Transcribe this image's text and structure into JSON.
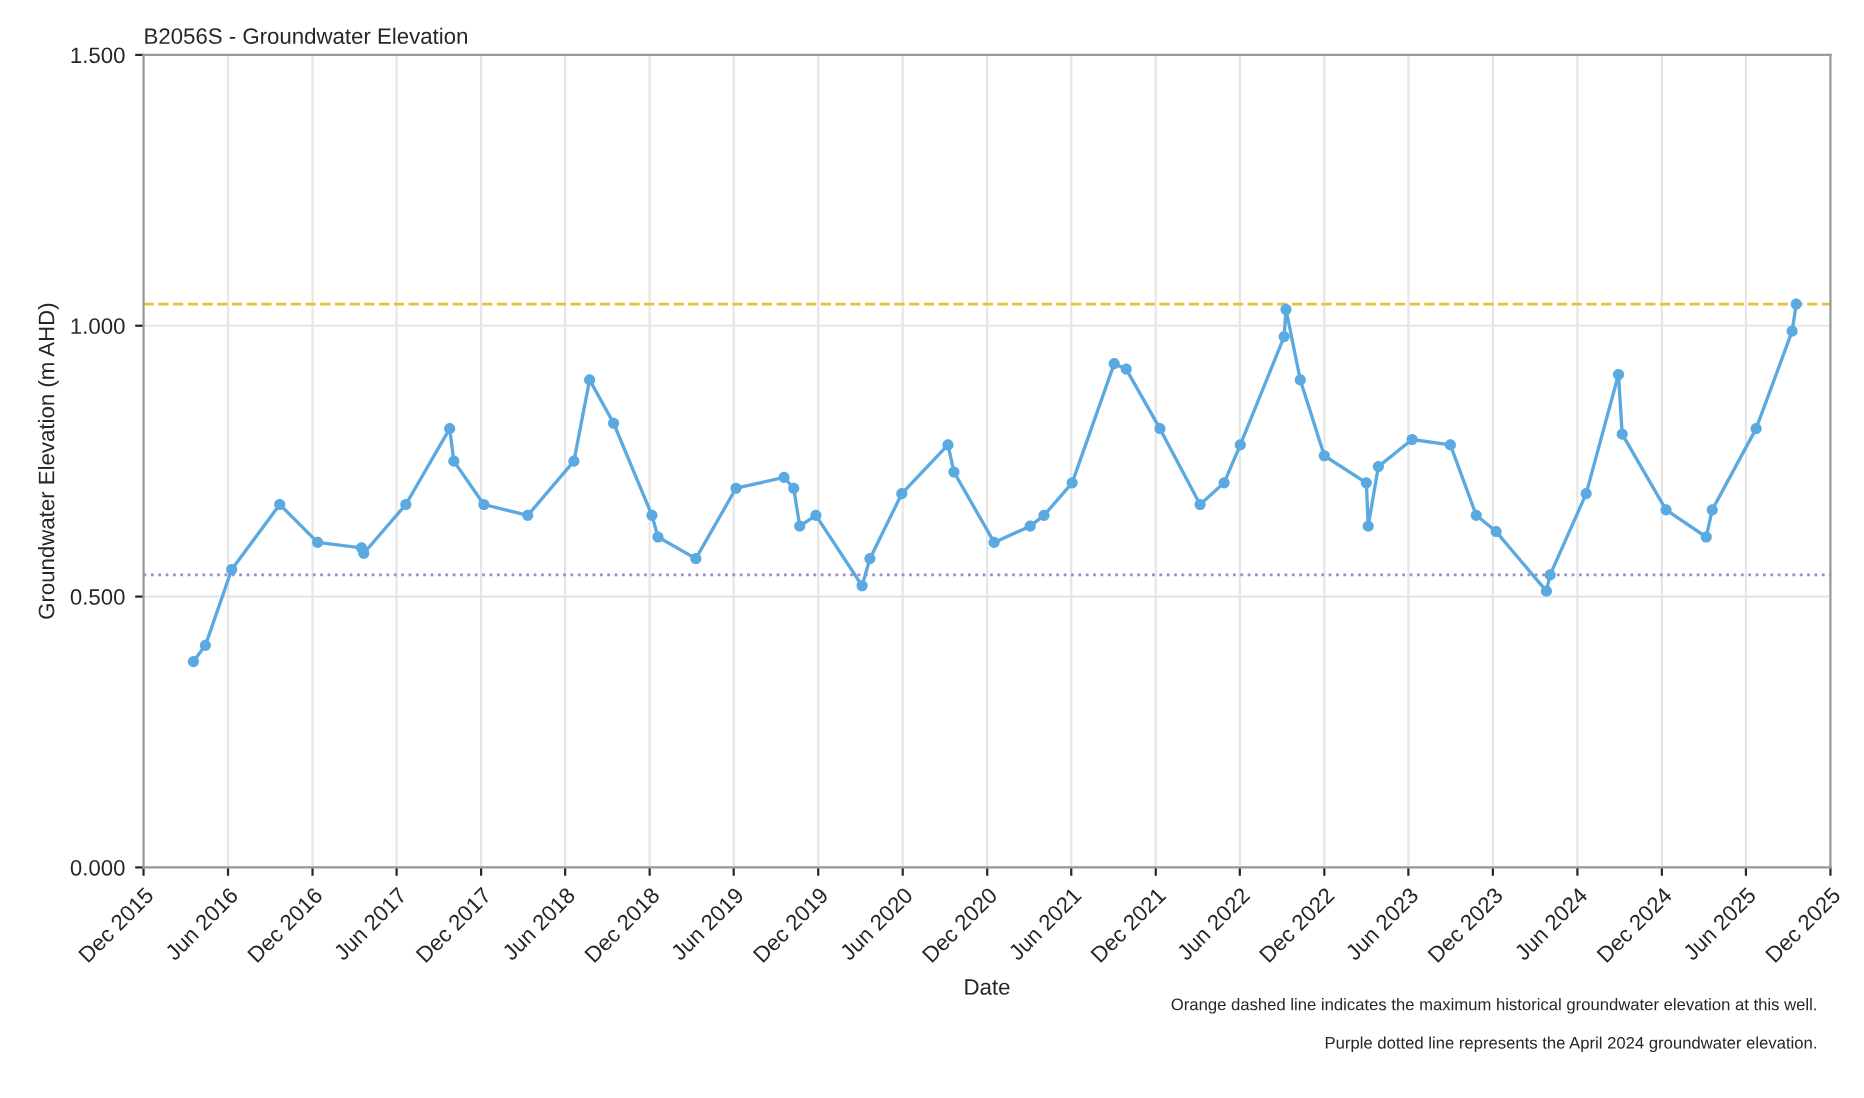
{
  "chart_data": {
    "type": "line",
    "title": "B2056S - Groundwater Elevation",
    "xlabel": "Date",
    "ylabel": "Groundwater Elevation (m AHD)",
    "x": [
      "2016-03-18",
      "2016-04-13",
      "2016-06-09",
      "2016-09-21",
      "2016-12-12",
      "2017-03-17",
      "2017-03-22",
      "2017-06-21",
      "2017-09-24",
      "2017-10-03",
      "2017-12-07",
      "2018-03-12",
      "2018-06-20",
      "2018-07-24",
      "2018-09-14",
      "2018-12-06",
      "2018-12-19",
      "2019-03-11",
      "2019-06-06",
      "2019-09-18",
      "2019-10-09",
      "2019-10-22",
      "2019-11-26",
      "2020-03-05",
      "2020-03-22",
      "2020-05-30",
      "2020-09-07",
      "2020-09-20",
      "2020-12-16",
      "2021-03-04",
      "2021-04-03",
      "2021-06-03",
      "2021-09-02",
      "2021-09-28",
      "2021-12-10",
      "2022-03-07",
      "2022-04-28",
      "2022-06-02",
      "2022-09-05",
      "2022-09-09",
      "2022-10-10",
      "2022-12-01",
      "2023-03-02",
      "2023-03-06",
      "2023-03-28",
      "2023-06-09",
      "2023-08-31",
      "2023-10-26",
      "2023-12-08",
      "2024-03-26",
      "2024-04-03",
      "2024-06-20",
      "2024-08-29",
      "2024-09-06",
      "2024-12-10",
      "2025-03-07",
      "2025-03-20",
      "2025-06-23",
      "2025-09-09",
      "2025-09-18"
    ],
    "series": [
      {
        "color": "#5aa9e0",
        "values": [
          0.38,
          0.41,
          0.55,
          0.67,
          0.6,
          0.59,
          0.58,
          0.67,
          0.81,
          0.75,
          0.67,
          0.65,
          0.75,
          0.9,
          0.82,
          0.65,
          0.61,
          0.57,
          0.7,
          0.72,
          0.7,
          0.63,
          0.65,
          0.52,
          0.57,
          0.69,
          0.78,
          0.73,
          0.6,
          0.63,
          0.65,
          0.71,
          0.93,
          0.92,
          0.81,
          0.67,
          0.71,
          0.78,
          0.98,
          1.03,
          0.9,
          0.76,
          0.71,
          0.63,
          0.74,
          0.79,
          0.78,
          0.65,
          0.62,
          0.51,
          0.54,
          0.69,
          0.91,
          0.8,
          0.66,
          0.61,
          0.66,
          0.81,
          0.99,
          1.04
        ]
      }
    ],
    "marker": "circle",
    "line_style": "solid",
    "xlim": [
      "2015-12-01",
      "2025-12-01"
    ],
    "xticks": [
      {
        "value": "2015-12-01",
        "label": "Dec 2015"
      },
      {
        "value": "2016-06-01",
        "label": "Jun 2016"
      },
      {
        "value": "2016-12-01",
        "label": "Dec 2016"
      },
      {
        "value": "2017-06-01",
        "label": "Jun 2017"
      },
      {
        "value": "2017-12-01",
        "label": "Dec 2017"
      },
      {
        "value": "2018-06-01",
        "label": "Jun 2018"
      },
      {
        "value": "2018-12-01",
        "label": "Dec 2018"
      },
      {
        "value": "2019-06-01",
        "label": "Jun 2019"
      },
      {
        "value": "2019-12-01",
        "label": "Dec 2019"
      },
      {
        "value": "2020-06-01",
        "label": "Jun 2020"
      },
      {
        "value": "2020-12-01",
        "label": "Dec 2020"
      },
      {
        "value": "2021-06-01",
        "label": "Jun 2021"
      },
      {
        "value": "2021-12-01",
        "label": "Dec 2021"
      },
      {
        "value": "2022-06-01",
        "label": "Jun 2022"
      },
      {
        "value": "2022-12-01",
        "label": "Dec 2022"
      },
      {
        "value": "2023-06-01",
        "label": "Jun 2023"
      },
      {
        "value": "2023-12-01",
        "label": "Dec 2023"
      },
      {
        "value": "2024-06-01",
        "label": "Jun 2024"
      },
      {
        "value": "2024-12-01",
        "label": "Dec 2024"
      },
      {
        "value": "2025-06-01",
        "label": "Jun 2025"
      },
      {
        "value": "2025-12-01",
        "label": "Dec 2025"
      }
    ],
    "ylim": [
      0,
      1.5
    ],
    "yticks": [
      {
        "value": 0,
        "label": "0.000"
      },
      {
        "value": 0.5,
        "label": "0.500"
      },
      {
        "value": 1.0,
        "label": "1.000"
      },
      {
        "value": 1.5,
        "label": "1.500"
      }
    ],
    "ref_lines": [
      {
        "axis": "y",
        "value": 1.04,
        "color": "#e8c040",
        "line_style": "dashed"
      },
      {
        "axis": "y",
        "value": 0.54,
        "color": "#a08cc0",
        "line_style": "dotted"
      }
    ],
    "grid": true,
    "legend": false,
    "annotations": [
      "Orange dashed line indicates the maximum historical groundwater elevation at this well.",
      "Purple dotted line represents the April 2024 groundwater elevation."
    ]
  }
}
